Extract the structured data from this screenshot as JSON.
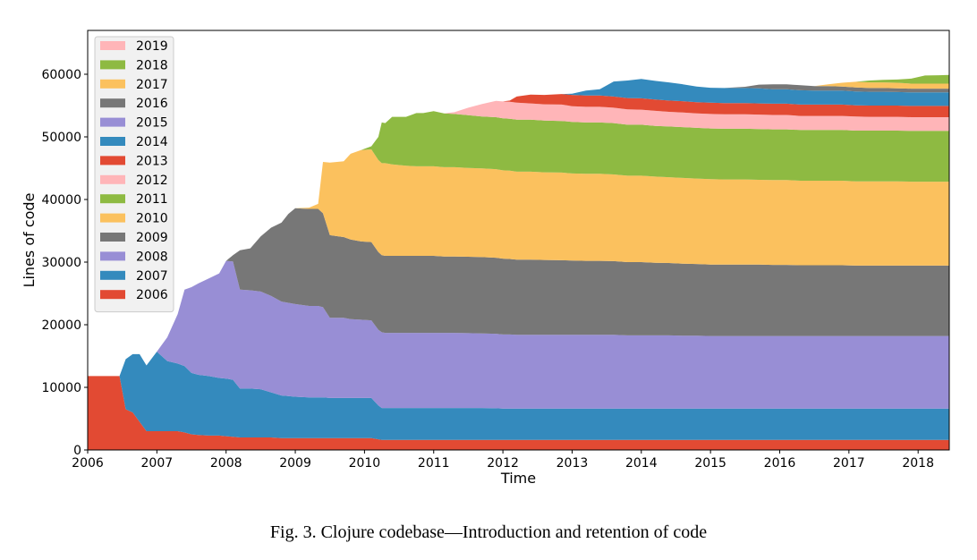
{
  "caption": "Fig. 3.  Clojure codebase—Introduction and retention of code",
  "chart_data": {
    "type": "area",
    "stacked": true,
    "xlabel": "Time",
    "ylabel": "Lines of code",
    "xlim": [
      2006.0,
      2018.45
    ],
    "ylim": [
      0,
      67000
    ],
    "x_ticks": [
      2006,
      2007,
      2008,
      2009,
      2010,
      2011,
      2012,
      2013,
      2014,
      2015,
      2016,
      2017,
      2018
    ],
    "y_ticks": [
      0,
      10000,
      20000,
      30000,
      40000,
      50000,
      60000
    ],
    "legend_position": "top-left",
    "grid": false,
    "x": [
      2006.0,
      2006.45,
      2006.46,
      2006.55,
      2006.65,
      2006.75,
      2006.85,
      2007.0,
      2007.15,
      2007.3,
      2007.4,
      2007.5,
      2007.6,
      2007.75,
      2007.9,
      2008.0,
      2008.1,
      2008.2,
      2008.35,
      2008.5,
      2008.65,
      2008.8,
      2008.9,
      2009.0,
      2009.2,
      2009.33,
      2009.4,
      2009.5,
      2009.7,
      2009.8,
      2009.95,
      2010.1,
      2010.2,
      2010.25,
      2010.3,
      2010.4,
      2010.6,
      2010.75,
      2010.85,
      2011.0,
      2011.15,
      2011.3,
      2011.5,
      2011.7,
      2011.9,
      2012.0,
      2012.1,
      2012.2,
      2012.4,
      2012.6,
      2012.85,
      2013.0,
      2013.2,
      2013.4,
      2013.6,
      2013.8,
      2014.0,
      2014.2,
      2014.4,
      2014.6,
      2014.8,
      2015.0,
      2015.2,
      2015.5,
      2015.7,
      2015.9,
      2016.1,
      2016.3,
      2016.5,
      2016.7,
      2016.9,
      2017.1,
      2017.3,
      2017.5,
      2017.7,
      2017.9,
      2018.1,
      2018.3,
      2018.45
    ],
    "series": [
      {
        "name": "2006",
        "color": "#e24a33",
        "values": [
          11800,
          11800,
          11800,
          6500,
          6000,
          4500,
          3000,
          3000,
          3000,
          3000,
          2800,
          2500,
          2400,
          2300,
          2300,
          2200,
          2100,
          2000,
          2000,
          2000,
          2000,
          1900,
          1900,
          1900,
          1900,
          1900,
          1900,
          1900,
          1900,
          1900,
          1900,
          1900,
          1700,
          1600,
          1600,
          1600,
          1600,
          1600,
          1600,
          1600,
          1600,
          1600,
          1600,
          1600,
          1600,
          1600,
          1600,
          1600,
          1600,
          1600,
          1600,
          1600,
          1600,
          1600,
          1600,
          1600,
          1600,
          1600,
          1600,
          1600,
          1600,
          1600,
          1600,
          1600,
          1600,
          1600,
          1600,
          1600,
          1600,
          1600,
          1600,
          1600,
          1600,
          1600,
          1600,
          1600,
          1600,
          1600,
          1600
        ]
      },
      {
        "name": "2007",
        "color": "#348abd",
        "values": [
          0,
          0,
          0,
          8000,
          9300,
          10800,
          10500,
          12700,
          11200,
          10800,
          10600,
          9800,
          9600,
          9500,
          9200,
          9200,
          9100,
          7800,
          7800,
          7700,
          7200,
          6800,
          6700,
          6600,
          6500,
          6500,
          6500,
          6400,
          6400,
          6400,
          6400,
          6400,
          5400,
          5100,
          5100,
          5100,
          5100,
          5100,
          5100,
          5100,
          5100,
          5100,
          5100,
          5100,
          5050,
          5000,
          5000,
          5000,
          5000,
          5000,
          5000,
          5000,
          5000,
          5000,
          5000,
          5000,
          5000,
          5000,
          5000,
          5000,
          5000,
          5000,
          5000,
          5000,
          5000,
          5000,
          5000,
          5000,
          5000,
          5000,
          5000,
          5000,
          5000,
          5000,
          5000,
          5000,
          5000,
          5000,
          5000
        ]
      },
      {
        "name": "2008",
        "color": "#988ed5",
        "values": [
          0,
          0,
          0,
          0,
          0,
          0,
          0,
          0,
          3800,
          7900,
          12200,
          13700,
          14600,
          15600,
          16700,
          18800,
          18900,
          15800,
          15700,
          15600,
          15400,
          15000,
          14900,
          14800,
          14600,
          14600,
          14400,
          12800,
          12800,
          12600,
          12500,
          12400,
          12100,
          12100,
          12000,
          12000,
          12000,
          12000,
          12000,
          12000,
          12000,
          12000,
          11950,
          11900,
          11900,
          11850,
          11850,
          11800,
          11800,
          11800,
          11800,
          11800,
          11800,
          11800,
          11800,
          11700,
          11700,
          11700,
          11700,
          11650,
          11650,
          11600,
          11600,
          11600,
          11600,
          11600,
          11600,
          11600,
          11600,
          11600,
          11600,
          11600,
          11600,
          11600,
          11600,
          11600,
          11600,
          11600,
          11600
        ]
      },
      {
        "name": "2009",
        "color": "#777777",
        "values": [
          0,
          0,
          0,
          0,
          0,
          0,
          0,
          0,
          0,
          0,
          0,
          0,
          0,
          0,
          0,
          0,
          1000,
          6300,
          6700,
          8800,
          10900,
          12600,
          14200,
          15300,
          15500,
          15500,
          15000,
          13200,
          12900,
          12700,
          12500,
          12500,
          12400,
          12300,
          12300,
          12300,
          12300,
          12300,
          12300,
          12300,
          12200,
          12200,
          12200,
          12200,
          12150,
          12100,
          12050,
          12000,
          12000,
          11950,
          11900,
          11850,
          11800,
          11800,
          11750,
          11700,
          11700,
          11600,
          11550,
          11500,
          11450,
          11400,
          11400,
          11400,
          11400,
          11350,
          11350,
          11300,
          11300,
          11300,
          11300,
          11250,
          11250,
          11250,
          11250,
          11250,
          11250,
          11250,
          11250
        ]
      },
      {
        "name": "2010",
        "color": "#fbc15e",
        "values": [
          0,
          0,
          0,
          0,
          0,
          0,
          0,
          0,
          0,
          0,
          0,
          0,
          0,
          0,
          0,
          0,
          0,
          0,
          0,
          0,
          0,
          0,
          0,
          0,
          200,
          800,
          8200,
          11600,
          12100,
          13700,
          14600,
          14800,
          14700,
          14700,
          14800,
          14600,
          14400,
          14300,
          14300,
          14300,
          14250,
          14250,
          14200,
          14150,
          14150,
          14100,
          14100,
          14050,
          14050,
          14000,
          14000,
          13900,
          13900,
          13900,
          13850,
          13800,
          13800,
          13750,
          13700,
          13700,
          13650,
          13650,
          13600,
          13600,
          13550,
          13550,
          13550,
          13500,
          13500,
          13500,
          13500,
          13450,
          13450,
          13450,
          13450,
          13400,
          13400,
          13400,
          13400
        ]
      },
      {
        "name": "2011",
        "color": "#8eba42",
        "values": [
          0,
          0,
          0,
          0,
          0,
          0,
          0,
          0,
          0,
          0,
          0,
          0,
          0,
          0,
          0,
          0,
          0,
          0,
          0,
          0,
          0,
          0,
          0,
          0,
          0,
          0,
          0,
          0,
          0,
          0,
          0,
          500,
          3700,
          6500,
          6400,
          7600,
          7800,
          8500,
          8500,
          8800,
          8600,
          8500,
          8400,
          8300,
          8300,
          8300,
          8300,
          8300,
          8300,
          8250,
          8250,
          8250,
          8200,
          8200,
          8200,
          8150,
          8150,
          8100,
          8100,
          8100,
          8100,
          8100,
          8100,
          8100,
          8100,
          8100,
          8100,
          8100,
          8100,
          8100,
          8100,
          8100,
          8100,
          8100,
          8100,
          8100,
          8100,
          8100,
          8100
        ]
      },
      {
        "name": "2012",
        "color": "#ffb5b8",
        "values": [
          0,
          0,
          0,
          0,
          0,
          0,
          0,
          0,
          0,
          0,
          0,
          0,
          0,
          0,
          0,
          0,
          0,
          0,
          0,
          0,
          0,
          0,
          0,
          0,
          0,
          0,
          0,
          0,
          0,
          0,
          0,
          0,
          0,
          0,
          0,
          0,
          0,
          0,
          0,
          0,
          0,
          300,
          1200,
          2000,
          2600,
          2700,
          2700,
          2700,
          2600,
          2600,
          2600,
          2500,
          2500,
          2500,
          2450,
          2450,
          2400,
          2400,
          2350,
          2350,
          2300,
          2300,
          2300,
          2300,
          2300,
          2300,
          2300,
          2250,
          2250,
          2250,
          2250,
          2250,
          2200,
          2200,
          2200,
          2200,
          2200,
          2200,
          2200
        ]
      },
      {
        "name": "2013",
        "color": "#e24a33",
        "values": [
          0,
          0,
          0,
          0,
          0,
          0,
          0,
          0,
          0,
          0,
          0,
          0,
          0,
          0,
          0,
          0,
          0,
          0,
          0,
          0,
          0,
          0,
          0,
          0,
          0,
          0,
          0,
          0,
          0,
          0,
          0,
          0,
          0,
          0,
          0,
          0,
          0,
          0,
          0,
          0,
          0,
          0,
          0,
          0,
          0,
          0,
          200,
          1000,
          1400,
          1500,
          1700,
          1800,
          1800,
          1800,
          1800,
          1800,
          1800,
          1800,
          1800,
          1800,
          1800,
          1800,
          1800,
          1800,
          1800,
          1800,
          1800,
          1800,
          1800,
          1800,
          1800,
          1800,
          1800,
          1800,
          1800,
          1800,
          1800,
          1800,
          1800
        ]
      },
      {
        "name": "2014",
        "color": "#348abd",
        "values": [
          0,
          0,
          0,
          0,
          0,
          0,
          0,
          0,
          0,
          0,
          0,
          0,
          0,
          0,
          0,
          0,
          0,
          0,
          0,
          0,
          0,
          0,
          0,
          0,
          0,
          0,
          0,
          0,
          0,
          0,
          0,
          0,
          0,
          0,
          0,
          0,
          0,
          0,
          0,
          0,
          0,
          0,
          0,
          0,
          0,
          0,
          0,
          0,
          0,
          0,
          0,
          200,
          800,
          1000,
          2400,
          2800,
          3100,
          3000,
          2900,
          2700,
          2500,
          2400,
          2400,
          2400,
          2400,
          2300,
          2300,
          2300,
          2250,
          2250,
          2250,
          2200,
          2200,
          2200,
          2150,
          2150,
          2150,
          2150,
          2150
        ]
      },
      {
        "name": "2015",
        "color": "#988ed5",
        "values": [
          0,
          0,
          0,
          0,
          0,
          0,
          0,
          0,
          0,
          0,
          0,
          0,
          0,
          0,
          0,
          0,
          0,
          0,
          0,
          0,
          0,
          0,
          0,
          0,
          0,
          0,
          0,
          0,
          0,
          0,
          0,
          0,
          0,
          0,
          0,
          0,
          0,
          0,
          0,
          0,
          0,
          0,
          0,
          0,
          0,
          0,
          0,
          0,
          0,
          0,
          0,
          0,
          0,
          0,
          0,
          0,
          0,
          0,
          0,
          0,
          0,
          0,
          0,
          0,
          0,
          0,
          0,
          0,
          0,
          0,
          0,
          0,
          0,
          0,
          0,
          0,
          0,
          0,
          0
        ]
      },
      {
        "name": "2016",
        "color": "#777777",
        "values": [
          0,
          0,
          0,
          0,
          0,
          0,
          0,
          0,
          0,
          0,
          0,
          0,
          0,
          0,
          0,
          0,
          0,
          0,
          0,
          0,
          0,
          0,
          0,
          0,
          0,
          0,
          0,
          0,
          0,
          0,
          0,
          0,
          0,
          0,
          0,
          0,
          0,
          0,
          0,
          0,
          0,
          0,
          0,
          0,
          0,
          0,
          0,
          0,
          0,
          0,
          0,
          0,
          0,
          0,
          0,
          0,
          0,
          0,
          0,
          0,
          0,
          0,
          0,
          200,
          600,
          800,
          800,
          800,
          700,
          700,
          650,
          650,
          600,
          600,
          600,
          600,
          600,
          600,
          600
        ]
      },
      {
        "name": "2017",
        "color": "#fbc15e",
        "values": [
          0,
          0,
          0,
          0,
          0,
          0,
          0,
          0,
          0,
          0,
          0,
          0,
          0,
          0,
          0,
          0,
          0,
          0,
          0,
          0,
          0,
          0,
          0,
          0,
          0,
          0,
          0,
          0,
          0,
          0,
          0,
          0,
          0,
          0,
          0,
          0,
          0,
          0,
          0,
          0,
          0,
          0,
          0,
          0,
          0,
          0,
          0,
          0,
          0,
          0,
          0,
          0,
          0,
          0,
          0,
          0,
          0,
          0,
          0,
          0,
          0,
          0,
          0,
          0,
          0,
          0,
          0,
          0,
          0,
          300,
          600,
          900,
          900,
          900,
          900,
          800,
          800,
          800,
          800
        ]
      },
      {
        "name": "2018",
        "color": "#8eba42",
        "values": [
          0,
          0,
          0,
          0,
          0,
          0,
          0,
          0,
          0,
          0,
          0,
          0,
          0,
          0,
          0,
          0,
          0,
          0,
          0,
          0,
          0,
          0,
          0,
          0,
          0,
          0,
          0,
          0,
          0,
          0,
          0,
          0,
          0,
          0,
          0,
          0,
          0,
          0,
          0,
          0,
          0,
          0,
          0,
          0,
          0,
          0,
          0,
          0,
          0,
          0,
          0,
          0,
          0,
          0,
          0,
          0,
          0,
          0,
          0,
          0,
          0,
          0,
          0,
          0,
          0,
          0,
          0,
          0,
          0,
          0,
          0,
          0,
          300,
          400,
          500,
          800,
          1300,
          1350,
          1400
        ]
      },
      {
        "name": "2019",
        "color": "#ffb5b8",
        "values": [
          0,
          0,
          0,
          0,
          0,
          0,
          0,
          0,
          0,
          0,
          0,
          0,
          0,
          0,
          0,
          0,
          0,
          0,
          0,
          0,
          0,
          0,
          0,
          0,
          0,
          0,
          0,
          0,
          0,
          0,
          0,
          0,
          0,
          0,
          0,
          0,
          0,
          0,
          0,
          0,
          0,
          0,
          0,
          0,
          0,
          0,
          0,
          0,
          0,
          0,
          0,
          0,
          0,
          0,
          0,
          0,
          0,
          0,
          0,
          0,
          0,
          0,
          0,
          0,
          0,
          0,
          0,
          0,
          0,
          0,
          0,
          0,
          0,
          0,
          0,
          0,
          0,
          0,
          0
        ]
      }
    ]
  }
}
